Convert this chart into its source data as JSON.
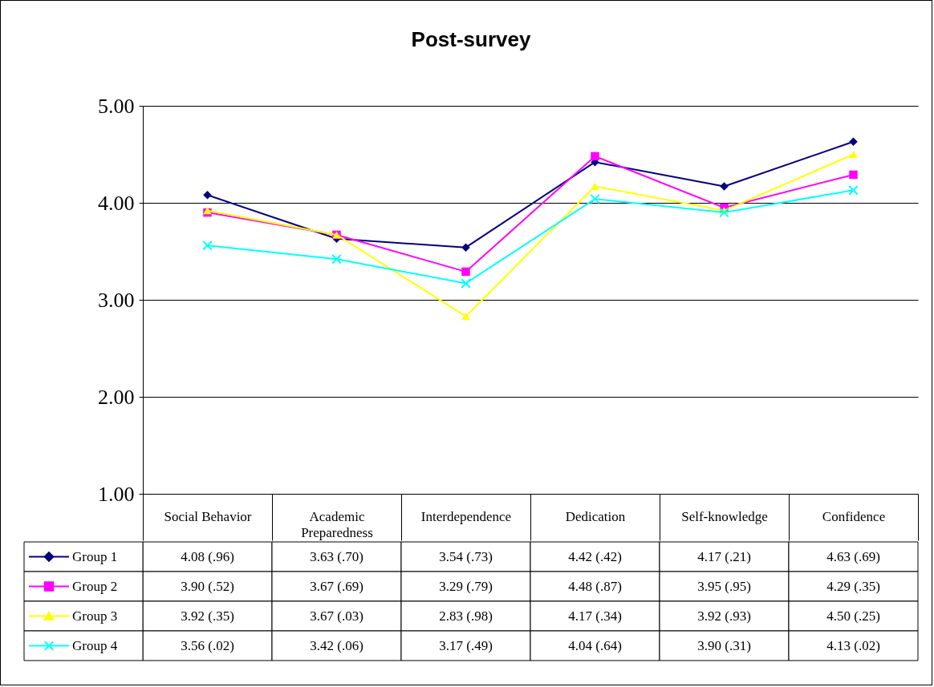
{
  "chart_data": {
    "type": "line",
    "title": "Post-survey",
    "categories": [
      "Social Behavior",
      "Academic Preparedness",
      "Interdependence",
      "Dedication",
      "Self-knowledge",
      "Confidence"
    ],
    "ylim": [
      1,
      5
    ],
    "yticks": [
      {
        "value": 1,
        "label": "1.00"
      },
      {
        "value": 2,
        "label": "2.00"
      },
      {
        "value": 3,
        "label": "3.00"
      },
      {
        "value": 4,
        "label": "4.00"
      },
      {
        "value": 5,
        "label": "5.00"
      }
    ],
    "grid": "y",
    "legend": "bottom",
    "line_style": "solid",
    "series": [
      {
        "name": "Group 1",
        "color": "#000080",
        "marker": "diamond",
        "values": [
          4.08,
          3.63,
          3.54,
          4.42,
          4.17,
          4.63
        ],
        "value_labels": [
          "4.08 (.96)",
          "3.63 (.70)",
          "3.54 (.73)",
          "4.42 (.42)",
          "4.17 (.21)",
          "4.63 (.69)"
        ]
      },
      {
        "name": "Group 2",
        "color": "#ff00ff",
        "marker": "square",
        "values": [
          3.9,
          3.67,
          3.29,
          4.48,
          3.95,
          4.29
        ],
        "value_labels": [
          "3.90 (.52)",
          "3.67 (.69)",
          "3.29 (.79)",
          "4.48 (.87)",
          "3.95 (.95)",
          "4.29 (.35)"
        ]
      },
      {
        "name": "Group 3",
        "color": "#ffff00",
        "marker": "triangle",
        "values": [
          3.92,
          3.67,
          2.83,
          4.17,
          3.92,
          4.5
        ],
        "value_labels": [
          "3.92 (.35)",
          "3.67 (.03)",
          "2.83 (.98)",
          "4.17 (.34)",
          "3.92 (.93)",
          "4.50 (.25)"
        ]
      },
      {
        "name": "Group 4",
        "color": "#00ffff",
        "marker": "cross",
        "values": [
          3.56,
          3.42,
          3.17,
          4.04,
          3.9,
          4.13
        ],
        "value_labels": [
          "3.56 (.02)",
          "3.42 (.06)",
          "3.17 (.49)",
          "4.04 (.64)",
          "3.90 (.31)",
          "4.13 (.02)"
        ]
      }
    ]
  }
}
